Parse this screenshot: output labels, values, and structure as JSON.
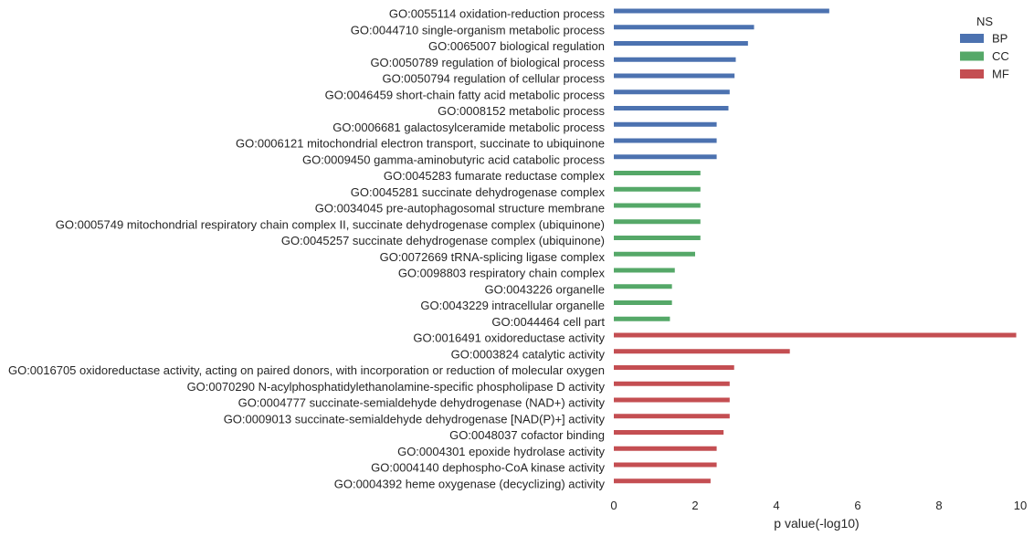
{
  "chart_data": {
    "type": "bar",
    "orientation": "horizontal",
    "xlabel": "p value(-log10)",
    "xlim": [
      0,
      10
    ],
    "xticks": [
      0,
      2,
      4,
      6,
      8,
      10
    ],
    "grid": false,
    "legend": {
      "title": "NS",
      "placement": "top-right",
      "entries": [
        {
          "name": "BP",
          "color": "#4c72b0"
        },
        {
          "name": "CC",
          "color": "#55a868"
        },
        {
          "name": "MF",
          "color": "#c44e52"
        }
      ]
    },
    "categories": [
      {
        "label": "GO:0055114 oxidation-reduction process",
        "ns": "BP",
        "value": 5.3
      },
      {
        "label": "GO:0044710 single-organism metabolic process",
        "ns": "BP",
        "value": 3.45
      },
      {
        "label": "GO:0065007 biological regulation",
        "ns": "BP",
        "value": 3.3
      },
      {
        "label": "GO:0050789 regulation of biological process",
        "ns": "BP",
        "value": 3.0
      },
      {
        "label": "GO:0050794 regulation of cellular process",
        "ns": "BP",
        "value": 2.97
      },
      {
        "label": "GO:0046459 short-chain fatty acid metabolic process",
        "ns": "BP",
        "value": 2.85
      },
      {
        "label": "GO:0008152 metabolic process",
        "ns": "BP",
        "value": 2.82
      },
      {
        "label": "GO:0006681 galactosylceramide metabolic process",
        "ns": "BP",
        "value": 2.53
      },
      {
        "label": "GO:0006121 mitochondrial electron transport, succinate to ubiquinone",
        "ns": "BP",
        "value": 2.53
      },
      {
        "label": "GO:0009450 gamma-aminobutyric acid catabolic process",
        "ns": "BP",
        "value": 2.53
      },
      {
        "label": "GO:0045283 fumarate reductase complex",
        "ns": "CC",
        "value": 2.13
      },
      {
        "label": "GO:0045281 succinate dehydrogenase complex",
        "ns": "CC",
        "value": 2.13
      },
      {
        "label": "GO:0034045 pre-autophagosomal structure membrane",
        "ns": "CC",
        "value": 2.13
      },
      {
        "label": "GO:0005749 mitochondrial respiratory chain complex II, succinate dehydrogenase complex (ubiquinone)",
        "ns": "CC",
        "value": 2.13
      },
      {
        "label": "GO:0045257 succinate dehydrogenase complex (ubiquinone)",
        "ns": "CC",
        "value": 2.13
      },
      {
        "label": "GO:0072669 tRNA-splicing ligase complex",
        "ns": "CC",
        "value": 2.0
      },
      {
        "label": "GO:0098803 respiratory chain complex",
        "ns": "CC",
        "value": 1.5
      },
      {
        "label": "GO:0043226 organelle",
        "ns": "CC",
        "value": 1.43
      },
      {
        "label": "GO:0043229 intracellular organelle",
        "ns": "CC",
        "value": 1.43
      },
      {
        "label": "GO:0044464 cell part",
        "ns": "CC",
        "value": 1.38
      },
      {
        "label": "GO:0016491 oxidoreductase activity",
        "ns": "MF",
        "value": 9.9
      },
      {
        "label": "GO:0003824 catalytic activity",
        "ns": "MF",
        "value": 4.33
      },
      {
        "label": "GO:0016705 oxidoreductase activity, acting on paired donors, with incorporation or reduction of molecular oxygen",
        "ns": "MF",
        "value": 2.96
      },
      {
        "label": "GO:0070290 N-acylphosphatidylethanolamine-specific phospholipase D activity",
        "ns": "MF",
        "value": 2.85
      },
      {
        "label": "GO:0004777 succinate-semialdehyde dehydrogenase (NAD+) activity",
        "ns": "MF",
        "value": 2.85
      },
      {
        "label": "GO:0009013 succinate-semialdehyde dehydrogenase [NAD(P)+] activity",
        "ns": "MF",
        "value": 2.85
      },
      {
        "label": "GO:0048037 cofactor binding",
        "ns": "MF",
        "value": 2.7
      },
      {
        "label": "GO:0004301 epoxide hydrolase activity",
        "ns": "MF",
        "value": 2.53
      },
      {
        "label": "GO:0004140 dephospho-CoA kinase activity",
        "ns": "MF",
        "value": 2.53
      },
      {
        "label": "GO:0004392 heme oxygenase (decyclizing) activity",
        "ns": "MF",
        "value": 2.38
      }
    ]
  }
}
